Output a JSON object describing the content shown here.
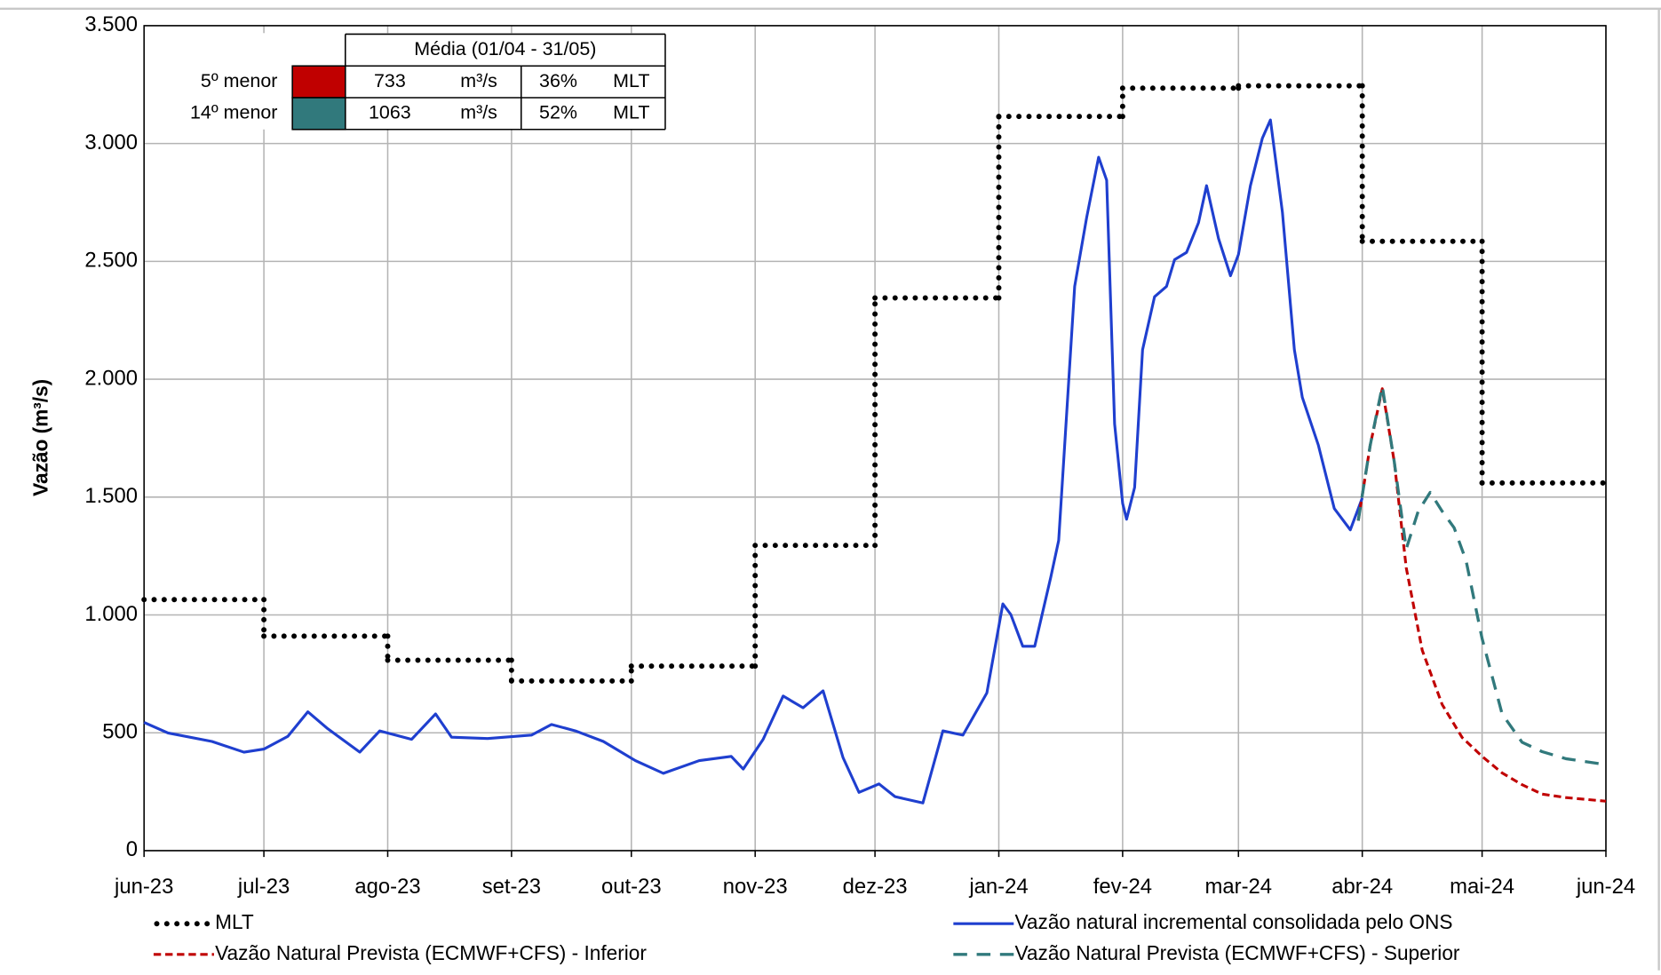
{
  "chart_data": {
    "type": "line",
    "y_axis_label": "Vazão (m³/s)",
    "xlim": [
      0,
      366
    ],
    "xticks": [
      {
        "value": 0,
        "label": "jun-23"
      },
      {
        "value": 30,
        "label": "jul-23"
      },
      {
        "value": 61,
        "label": "ago-23"
      },
      {
        "value": 92,
        "label": "set-23"
      },
      {
        "value": 122,
        "label": "out-23"
      },
      {
        "value": 153,
        "label": "nov-23"
      },
      {
        "value": 183,
        "label": "dez-23"
      },
      {
        "value": 214,
        "label": "jan-24"
      },
      {
        "value": 245,
        "label": "fev-24"
      },
      {
        "value": 274,
        "label": "mar-24"
      },
      {
        "value": 305,
        "label": "abr-24"
      },
      {
        "value": 335,
        "label": "mai-24"
      },
      {
        "value": 366,
        "label": "jun-24"
      }
    ],
    "ylim": [
      0,
      3500
    ],
    "yticks": [
      0,
      500,
      {
        "value": 1000,
        "label": "1.000"
      },
      {
        "value": 1500,
        "label": "1.500"
      },
      {
        "value": 2000,
        "label": "2.000"
      },
      {
        "value": 2500,
        "label": "2.500"
      },
      {
        "value": 3000,
        "label": "3.000"
      },
      {
        "value": 3500,
        "label": "3.500"
      }
    ],
    "grid": true,
    "series": [
      {
        "name": "MLT",
        "color": "#000000",
        "style": "step",
        "x": [
          0,
          30,
          61,
          92,
          122,
          153,
          183,
          214,
          245,
          274,
          305,
          335
        ],
        "values": [
          1065,
          910,
          808,
          720,
          783,
          1295,
          2345,
          3115,
          3235,
          3245,
          2585,
          1560
        ]
      },
      {
        "name": "Vazão natural incremental consolidada pelo ONS",
        "color": "#1f3fcf",
        "style": "solid",
        "x": [
          0,
          6,
          17,
          25,
          30,
          36,
          41,
          46,
          54,
          59,
          67,
          73,
          77,
          86,
          97,
          102,
          108,
          115,
          123,
          130,
          139,
          147,
          150,
          155,
          160,
          165,
          170,
          175,
          179,
          184,
          188,
          195,
          200,
          205,
          211,
          215,
          217,
          220,
          223,
          227,
          229,
          233,
          236,
          239,
          241,
          243,
          245,
          246,
          248,
          250,
          253,
          256,
          258,
          261,
          264,
          266,
          269,
          272,
          274,
          277,
          280,
          282,
          285,
          288,
          290,
          294,
          298,
          302,
          305
        ],
        "values": [
          544,
          499,
          463,
          418,
          431,
          485,
          589,
          517,
          418,
          508,
          472,
          580,
          481,
          476,
          490,
          535,
          508,
          463,
          382,
          328,
          382,
          400,
          346,
          472,
          656,
          606,
          678,
          395,
          247,
          283,
          229,
          202,
          508,
          490,
          669,
          1047,
          1002,
          867,
          867,
          1159,
          1316,
          2394,
          2686,
          2942,
          2844,
          1810,
          1473,
          1406,
          1541,
          2125,
          2350,
          2394,
          2507,
          2538,
          2664,
          2821,
          2597,
          2439,
          2529,
          2821,
          3023,
          3100,
          2709,
          2125,
          1923,
          1721,
          1451,
          1361,
          1496
        ]
      },
      {
        "name": "Vazão Natural Prevista (ECMWF+CFS) - Inferior",
        "color": "#c00000",
        "style": "dash",
        "x": [
          304,
          307,
          310,
          313,
          316,
          320,
          325,
          330,
          335,
          340,
          345,
          350,
          356,
          366
        ],
        "values": [
          1400,
          1720,
          1960,
          1650,
          1200,
          850,
          620,
          480,
          400,
          330,
          280,
          240,
          225,
          210
        ]
      },
      {
        "name": "Vazão Natural Prevista (ECMWF+CFS) - Superior",
        "color": "#31797c",
        "style": "longdash",
        "x": [
          304,
          307,
          310,
          313,
          316,
          319,
          322,
          325,
          328,
          331,
          335,
          340,
          345,
          350,
          356,
          366
        ],
        "values": [
          1400,
          1720,
          1970,
          1650,
          1280,
          1440,
          1520,
          1440,
          1370,
          1230,
          900,
          580,
          460,
          420,
          390,
          365
        ]
      }
    ],
    "inset_table": {
      "header": "Média (01/04 - 31/05)",
      "rows": [
        {
          "label": "5º menor",
          "color": "#c00000",
          "value": 733,
          "unit": "m³/s",
          "percent": "36%",
          "reference": "MLT"
        },
        {
          "label": "14º menor",
          "color": "#31797c",
          "value": 1063,
          "unit": "m³/s",
          "percent": "52%",
          "reference": "MLT"
        }
      ]
    }
  }
}
